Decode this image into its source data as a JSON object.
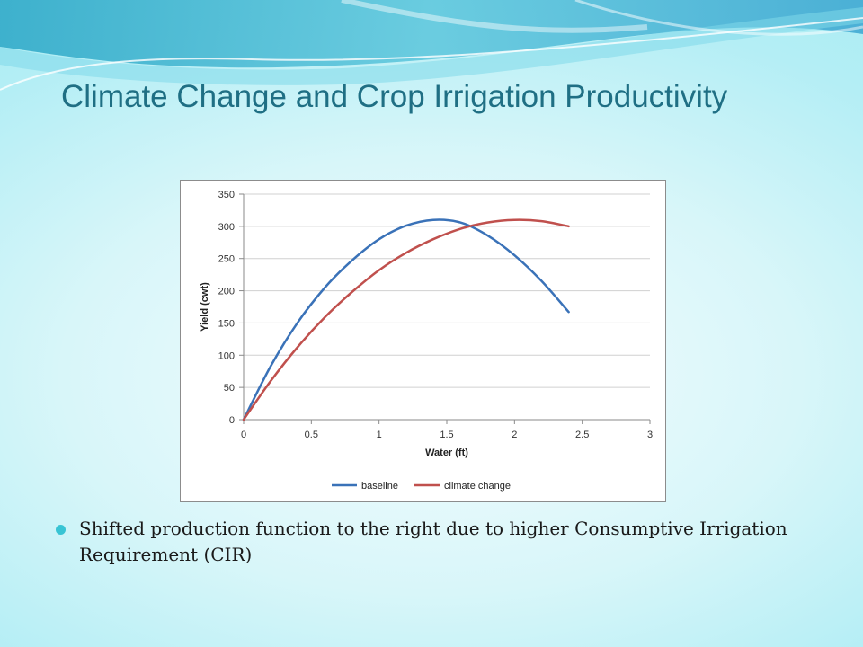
{
  "slide": {
    "title": "Climate Change and Crop Irrigation Productivity",
    "bullet": "Shifted production function to the right due to higher Consumptive Irrigation Requirement (CIR)",
    "colors": {
      "title": "#1f6f84",
      "bullet": "#38c4d4",
      "background": "#c9f4f8"
    }
  },
  "chart_data": {
    "type": "line",
    "xlabel": "Water (ft)",
    "ylabel": "Yield (cwt)",
    "xlim": [
      0,
      3
    ],
    "ylim": [
      0,
      350
    ],
    "xticks": [
      "0",
      "0.5",
      "1",
      "1.5",
      "2",
      "2.5",
      "3"
    ],
    "yticks": [
      "0",
      "50",
      "100",
      "150",
      "200",
      "250",
      "300",
      "350"
    ],
    "grid": "horizontal",
    "legend": "bottom",
    "series": [
      {
        "name": "baseline",
        "color": "#3a72b8",
        "x": [
          0,
          0.2,
          0.4,
          0.6,
          0.8,
          1.0,
          1.2,
          1.4,
          1.6,
          1.8,
          2.0,
          2.2,
          2.4
        ],
        "y": [
          0,
          83,
          151,
          205,
          247,
          280,
          301,
          310,
          306,
          286,
          255,
          215,
          167
        ]
      },
      {
        "name": "climate change",
        "color": "#c0504d",
        "x": [
          0,
          0.2,
          0.4,
          0.6,
          0.8,
          1.0,
          1.2,
          1.4,
          1.6,
          1.8,
          2.0,
          2.2,
          2.4
        ],
        "y": [
          0,
          60,
          113,
          159,
          198,
          232,
          259,
          280,
          296,
          306,
          310,
          308,
          300
        ]
      }
    ]
  }
}
